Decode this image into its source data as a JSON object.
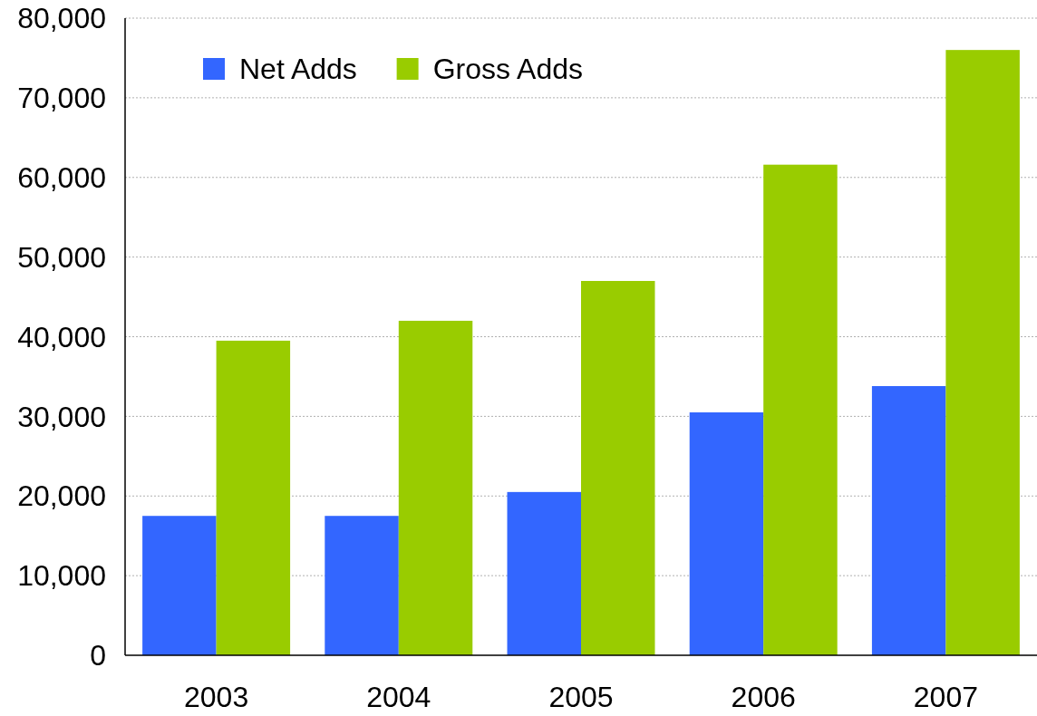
{
  "chart_data": {
    "type": "bar",
    "categories": [
      "2003",
      "2004",
      "2005",
      "2006",
      "2007"
    ],
    "series": [
      {
        "name": "Net Adds",
        "color": "#3366ff",
        "values": [
          17500,
          17500,
          20500,
          30500,
          33800
        ]
      },
      {
        "name": "Gross Adds",
        "color": "#99cc00",
        "values": [
          39500,
          42000,
          47000,
          61600,
          76000
        ]
      }
    ],
    "ylim": [
      0,
      80000
    ],
    "yticks": [
      0,
      {
        "value": 10000,
        "label": "10,000"
      },
      {
        "value": 20000,
        "label": "20,000"
      },
      {
        "value": 30000,
        "label": "30,000"
      },
      {
        "value": 40000,
        "label": "40,000"
      },
      {
        "value": 50000,
        "label": "50,000"
      },
      {
        "value": 60000,
        "label": "60,000"
      },
      {
        "value": 70000,
        "label": "70,000"
      },
      {
        "value": 80000,
        "label": "80,000"
      }
    ],
    "grid": "y",
    "legend": "top left"
  }
}
